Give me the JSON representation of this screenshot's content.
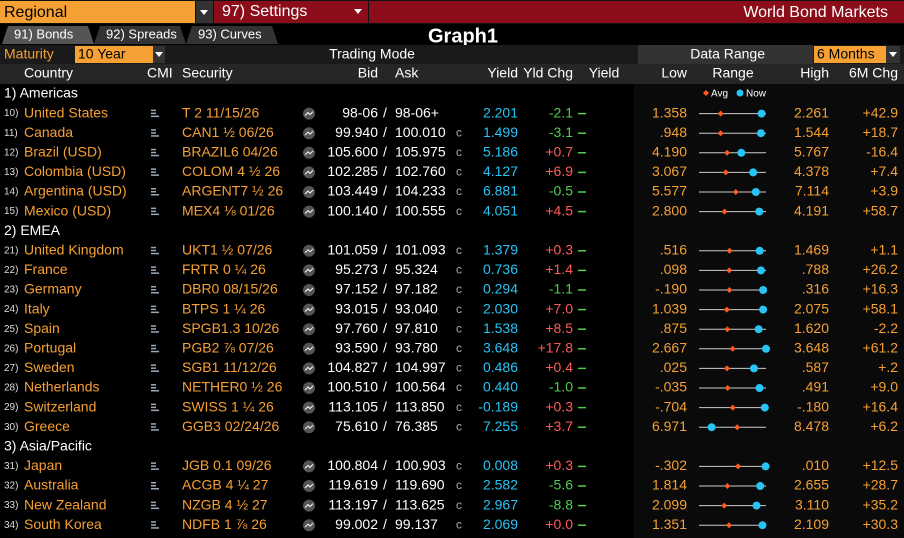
{
  "toolbar": {
    "menu": "Regional",
    "settings": "97) Settings",
    "title": "World Bond Markets"
  },
  "tabs": [
    "91) Bonds",
    "92) Spreads",
    "93) Curves"
  ],
  "graph": "Graph1",
  "controls": {
    "maturity_label": "Maturity",
    "maturity": "10 Year",
    "mode": "Trading Mode",
    "range_label": "Data Range",
    "range": "6 Months"
  },
  "headers": {
    "country": "Country",
    "cmi": "CMI",
    "security": "Security",
    "bid": "Bid",
    "ask": "Ask",
    "yield": "Yield",
    "chg": "Yld Chg",
    "spark": "Yield",
    "low": "Low",
    "range": "Range",
    "high": "High",
    "chg6m": "6M Chg"
  },
  "legend": {
    "avg": "Avg",
    "now": "Now"
  },
  "sections": [
    {
      "name": "1) Americas",
      "rows": [
        {
          "num": "10)",
          "country": "United States",
          "security": "T 2 11/15/26",
          "bid": "98-06",
          "ask": "98-06+",
          "yield": 2.201,
          "chg": "-2.1",
          "low": 1.358,
          "high": 2.261,
          "chg6m": "+42.9",
          "avg": 1.65
        },
        {
          "num": "11)",
          "country": "Canada",
          "security": "CAN1 ½ 06/26",
          "bid": "99.940",
          "ask": "100.010",
          "flag": "c",
          "yield": 1.499,
          "chg": "-3.1",
          "low": {
            "value": 0.948,
            "label": ".948"
          },
          "high": 1.544,
          "chg6m": "+18.7",
          "avg": 1.14
        },
        {
          "num": "12)",
          "country": "Brazil (USD)",
          "security": "BRAZIL6 04/26",
          "bid": "105.600",
          "ask": "105.975",
          "flag": "c",
          "yield": 5.186,
          "chg": "+0.7",
          "low": {
            "value": 4.19,
            "label": "4.190"
          },
          "high": 5.767,
          "chg6m": "-16.4",
          "avg": 4.85
        },
        {
          "num": "13)",
          "country": "Colombia (USD)",
          "security": "COLOM 4 ½ 26",
          "bid": "102.285",
          "ask": "102.760",
          "flag": "c",
          "yield": 4.127,
          "chg": "+6.9",
          "low": 3.067,
          "high": 4.378,
          "chg6m": "+7.4",
          "avg": 3.59
        },
        {
          "num": "14)",
          "country": "Argentina (USD)",
          "security": "ARGENT7 ½ 26",
          "bid": "103.449",
          "ask": "104.233",
          "flag": "c",
          "yield": 6.881,
          "chg": "-0.5",
          "low": 5.577,
          "high": 7.114,
          "chg6m": "+3.9",
          "avg": 6.42
        },
        {
          "num": "15)",
          "country": "Mexico (USD)",
          "security": "MEX4 ⅛ 01/26",
          "bid": "100.140",
          "ask": "100.555",
          "flag": "c",
          "yield": 4.051,
          "chg": "+4.5",
          "low": {
            "value": 2.8,
            "label": "2.800"
          },
          "high": 4.191,
          "chg6m": "+58.7",
          "avg": 3.33
        }
      ]
    },
    {
      "name": "2) EMEA",
      "rows": [
        {
          "num": "21)",
          "country": "United Kingdom",
          "security": "UKT1 ½ 07/26",
          "bid": "101.059",
          "ask": "101.093",
          "flag": "c",
          "yield": 1.379,
          "chg": "+0.3",
          "low": {
            "value": 0.516,
            "label": ".516"
          },
          "high": 1.469,
          "chg6m": "+1.1",
          "avg": 0.95
        },
        {
          "num": "22)",
          "country": "France",
          "security": "FRTR 0 ¼ 26",
          "bid": "95.273",
          "ask": "95.324",
          "flag": "c",
          "yield": 0.736,
          "chg": "+1.4",
          "low": {
            "value": 0.098,
            "label": ".098"
          },
          "high": {
            "value": 0.788,
            "label": ".788"
          },
          "chg6m": "+26.2",
          "avg": 0.41
        },
        {
          "num": "23)",
          "country": "Germany",
          "security": "DBR0 08/15/26",
          "bid": "97.152",
          "ask": "97.182",
          "flag": "c",
          "yield": 0.294,
          "chg": "-1.1",
          "low": {
            "value": -0.19,
            "label": "-.190"
          },
          "high": {
            "value": 0.316,
            "label": ".316"
          },
          "chg6m": "+16.3",
          "avg": 0.04
        },
        {
          "num": "24)",
          "country": "Italy",
          "security": "BTPS 1 ¼ 26",
          "bid": "93.015",
          "ask": "93.040",
          "flag": "c",
          "yield": {
            "value": 2.03,
            "label": "2.030"
          },
          "chg": "+7.0",
          "low": 1.039,
          "high": 2.075,
          "chg6m": "+58.1",
          "avg": 1.47
        },
        {
          "num": "25)",
          "country": "Spain",
          "security": "SPGB1.3 10/26",
          "bid": "97.760",
          "ask": "97.810",
          "flag": "c",
          "yield": 1.538,
          "chg": "+8.5",
          "low": {
            "value": 0.875,
            "label": ".875"
          },
          "high": {
            "value": 1.62,
            "label": "1.620"
          },
          "chg6m": "-2.2",
          "avg": 1.19
        },
        {
          "num": "26)",
          "country": "Portugal",
          "security": "PGB2 ⅞ 07/26",
          "bid": "93.590",
          "ask": "93.780",
          "flag": "c",
          "yield": 3.648,
          "chg": "+17.8",
          "low": 2.667,
          "high": 3.648,
          "chg6m": "+61.2",
          "avg": 3.16
        },
        {
          "num": "27)",
          "country": "Sweden",
          "security": "SGB1 11/12/26",
          "bid": "104.827",
          "ask": "104.997",
          "flag": "c",
          "yield": 0.486,
          "chg": "+0.4",
          "low": {
            "value": 0.025,
            "label": ".025"
          },
          "high": {
            "value": 0.587,
            "label": ".587"
          },
          "chg6m": "+.2",
          "avg": 0.26
        },
        {
          "num": "28)",
          "country": "Netherlands",
          "security": "NETHER0 ½ 26",
          "bid": "100.510",
          "ask": "100.564",
          "flag": "c",
          "yield": {
            "value": 0.44,
            "label": "0.440"
          },
          "chg": "-1.0",
          "low": {
            "value": -0.035,
            "label": "-.035"
          },
          "high": {
            "value": 0.491,
            "label": ".491"
          },
          "chg6m": "+9.0",
          "avg": 0.19
        },
        {
          "num": "29)",
          "country": "Switzerland",
          "security": "SWISS 1 ¼ 26",
          "bid": "113.105",
          "ask": "113.850",
          "flag": "c",
          "yield": -0.189,
          "chg": "+0.3",
          "low": {
            "value": -0.704,
            "label": "-.704"
          },
          "high": {
            "value": -0.18,
            "label": "-.180"
          },
          "chg6m": "+16.4",
          "avg": -0.44
        },
        {
          "num": "30)",
          "country": "Greece",
          "security": "GGB3 02/24/26",
          "bid": "75.610",
          "ask": "76.385",
          "flag": "c",
          "yield": 7.255,
          "chg": "+3.7",
          "low": 6.971,
          "high": 8.478,
          "chg6m": "+6.2",
          "avg": 7.83
        }
      ]
    },
    {
      "name": "3) Asia/Pacific",
      "rows": [
        {
          "num": "31)",
          "country": "Japan",
          "security": "JGB 0.1 09/26",
          "bid": "100.804",
          "ask": "100.903",
          "flag": "c",
          "yield": 0.008,
          "chg": "+0.3",
          "low": {
            "value": -0.302,
            "label": "-.302"
          },
          "high": {
            "value": 0.01,
            "label": ".010"
          },
          "chg6m": "+12.5",
          "avg": -0.12
        },
        {
          "num": "32)",
          "country": "Australia",
          "security": "ACGB 4 ¼ 27",
          "bid": "119.619",
          "ask": "119.690",
          "flag": "c",
          "yield": 2.582,
          "chg": "-5.6",
          "low": 1.814,
          "high": 2.655,
          "chg6m": "+28.7",
          "avg": 2.17
        },
        {
          "num": "33)",
          "country": "New Zealand",
          "security": "NZGB 4 ½ 27",
          "bid": "113.197",
          "ask": "113.625",
          "flag": "c",
          "yield": 2.967,
          "chg": "-8.8",
          "low": 2.099,
          "high": {
            "value": 3.11,
            "label": "3.110"
          },
          "chg6m": "+35.2",
          "avg": 2.48
        },
        {
          "num": "34)",
          "country": "South Korea",
          "security": "NDFB 1 ⅞ 26",
          "bid": "99.002",
          "ask": "99.137",
          "flag": "c",
          "yield": 2.069,
          "chg": "+0.0",
          "low": 1.351,
          "high": 2.109,
          "chg6m": "+30.3",
          "avg": 1.69
        }
      ]
    }
  ]
}
